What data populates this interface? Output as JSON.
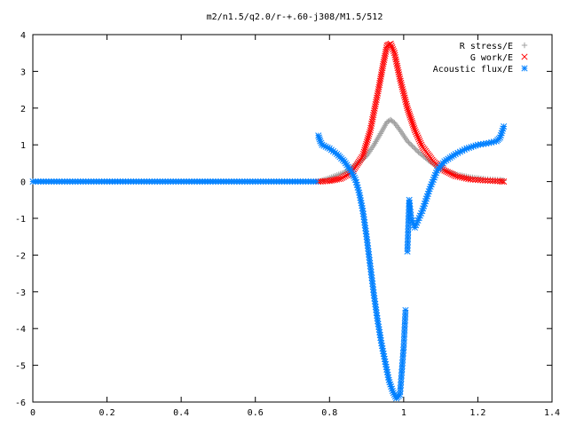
{
  "chart_data": {
    "type": "scatter",
    "title": "m2/n1.5/q2.0/r-+.60-j308/M1.5/512",
    "xlabel": "",
    "ylabel": "",
    "xlim": [
      0,
      1.4
    ],
    "ylim": [
      -6,
      4
    ],
    "xticks": [
      "0",
      "0.2",
      "0.4",
      "0.6",
      "0.8",
      "1",
      "1.2",
      "1.4"
    ],
    "yticks": [
      "4",
      "3",
      "2",
      "1",
      "0",
      "-1",
      "-2",
      "-3",
      "-4",
      "-5",
      "-6"
    ],
    "grid": false,
    "legend_position": "top-right",
    "series": [
      {
        "name": "R stress/E",
        "marker": "plus",
        "color": "#a0a0a0",
        "x": [
          0.77,
          0.8,
          0.84,
          0.87,
          0.9,
          0.92,
          0.94,
          0.955,
          0.965,
          0.975,
          0.99,
          1.01,
          1.04,
          1.07,
          1.1,
          1.14,
          1.18,
          1.22,
          1.26,
          1.27
        ],
        "y": [
          0.0,
          0.1,
          0.25,
          0.45,
          0.7,
          1.0,
          1.35,
          1.62,
          1.68,
          1.6,
          1.4,
          1.1,
          0.8,
          0.55,
          0.35,
          0.2,
          0.12,
          0.07,
          0.05,
          0.03
        ]
      },
      {
        "name": "G work/E",
        "marker": "cross",
        "color": "#ff0000",
        "x": [
          0.77,
          0.8,
          0.83,
          0.86,
          0.89,
          0.91,
          0.93,
          0.945,
          0.955,
          0.965,
          0.975,
          0.99,
          1.01,
          1.03,
          1.05,
          1.08,
          1.11,
          1.14,
          1.18,
          1.22,
          1.26,
          1.27
        ],
        "y": [
          0.0,
          0.02,
          0.08,
          0.25,
          0.7,
          1.4,
          2.4,
          3.2,
          3.7,
          3.75,
          3.5,
          2.8,
          2.0,
          1.4,
          0.95,
          0.55,
          0.3,
          0.15,
          0.06,
          0.03,
          0.01,
          0.0
        ]
      },
      {
        "name": "Acoustic flux/E",
        "marker": "star",
        "color": "#0080ff",
        "x": [
          0.0,
          0.05,
          0.1,
          0.15,
          0.2,
          0.25,
          0.3,
          0.35,
          0.4,
          0.45,
          0.5,
          0.55,
          0.6,
          0.65,
          0.7,
          0.75,
          0.77,
          0.775,
          0.78,
          0.8,
          0.82,
          0.84,
          0.85,
          0.86,
          0.87,
          0.88,
          0.89,
          0.9,
          0.91,
          0.92,
          0.93,
          0.94,
          0.95,
          0.96,
          0.97,
          0.98,
          0.99,
          1.0,
          1.005,
          1.01,
          1.015,
          1.02,
          1.03,
          1.05,
          1.07,
          1.09,
          1.11,
          1.14,
          1.17,
          1.2,
          1.23,
          1.25,
          1.26,
          1.27
        ],
        "y": [
          0.0,
          0.0,
          0.0,
          0.0,
          0.0,
          0.0,
          0.0,
          0.0,
          0.0,
          0.0,
          0.0,
          0.0,
          0.0,
          0.0,
          0.0,
          0.0,
          1.25,
          1.1,
          1.0,
          0.9,
          0.75,
          0.55,
          0.4,
          0.25,
          0.05,
          -0.3,
          -0.8,
          -1.5,
          -2.3,
          -3.1,
          -3.8,
          -4.4,
          -4.9,
          -5.4,
          -5.7,
          -5.9,
          -5.8,
          -4.5,
          -3.5,
          -1.9,
          -0.5,
          -1.0,
          -1.25,
          -0.8,
          -0.2,
          0.3,
          0.55,
          0.75,
          0.9,
          1.0,
          1.05,
          1.1,
          1.2,
          1.5
        ]
      }
    ]
  }
}
